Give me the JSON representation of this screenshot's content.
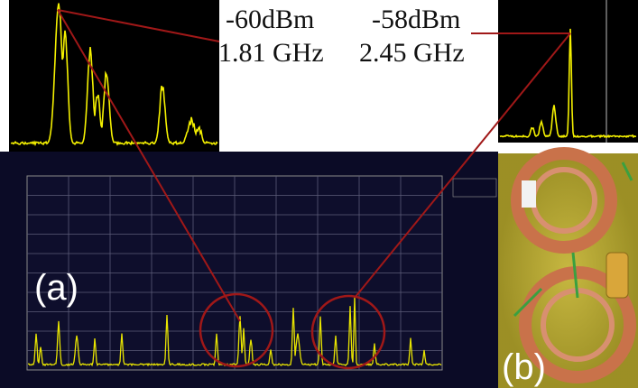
{
  "annotations": {
    "left": {
      "power": "-60dBm",
      "frequency": "1.81 GHz"
    },
    "right": {
      "power": "-58dBm",
      "frequency": "2.45 GHz"
    }
  },
  "panels": {
    "a": "(a)",
    "b": "(b)"
  }
}
